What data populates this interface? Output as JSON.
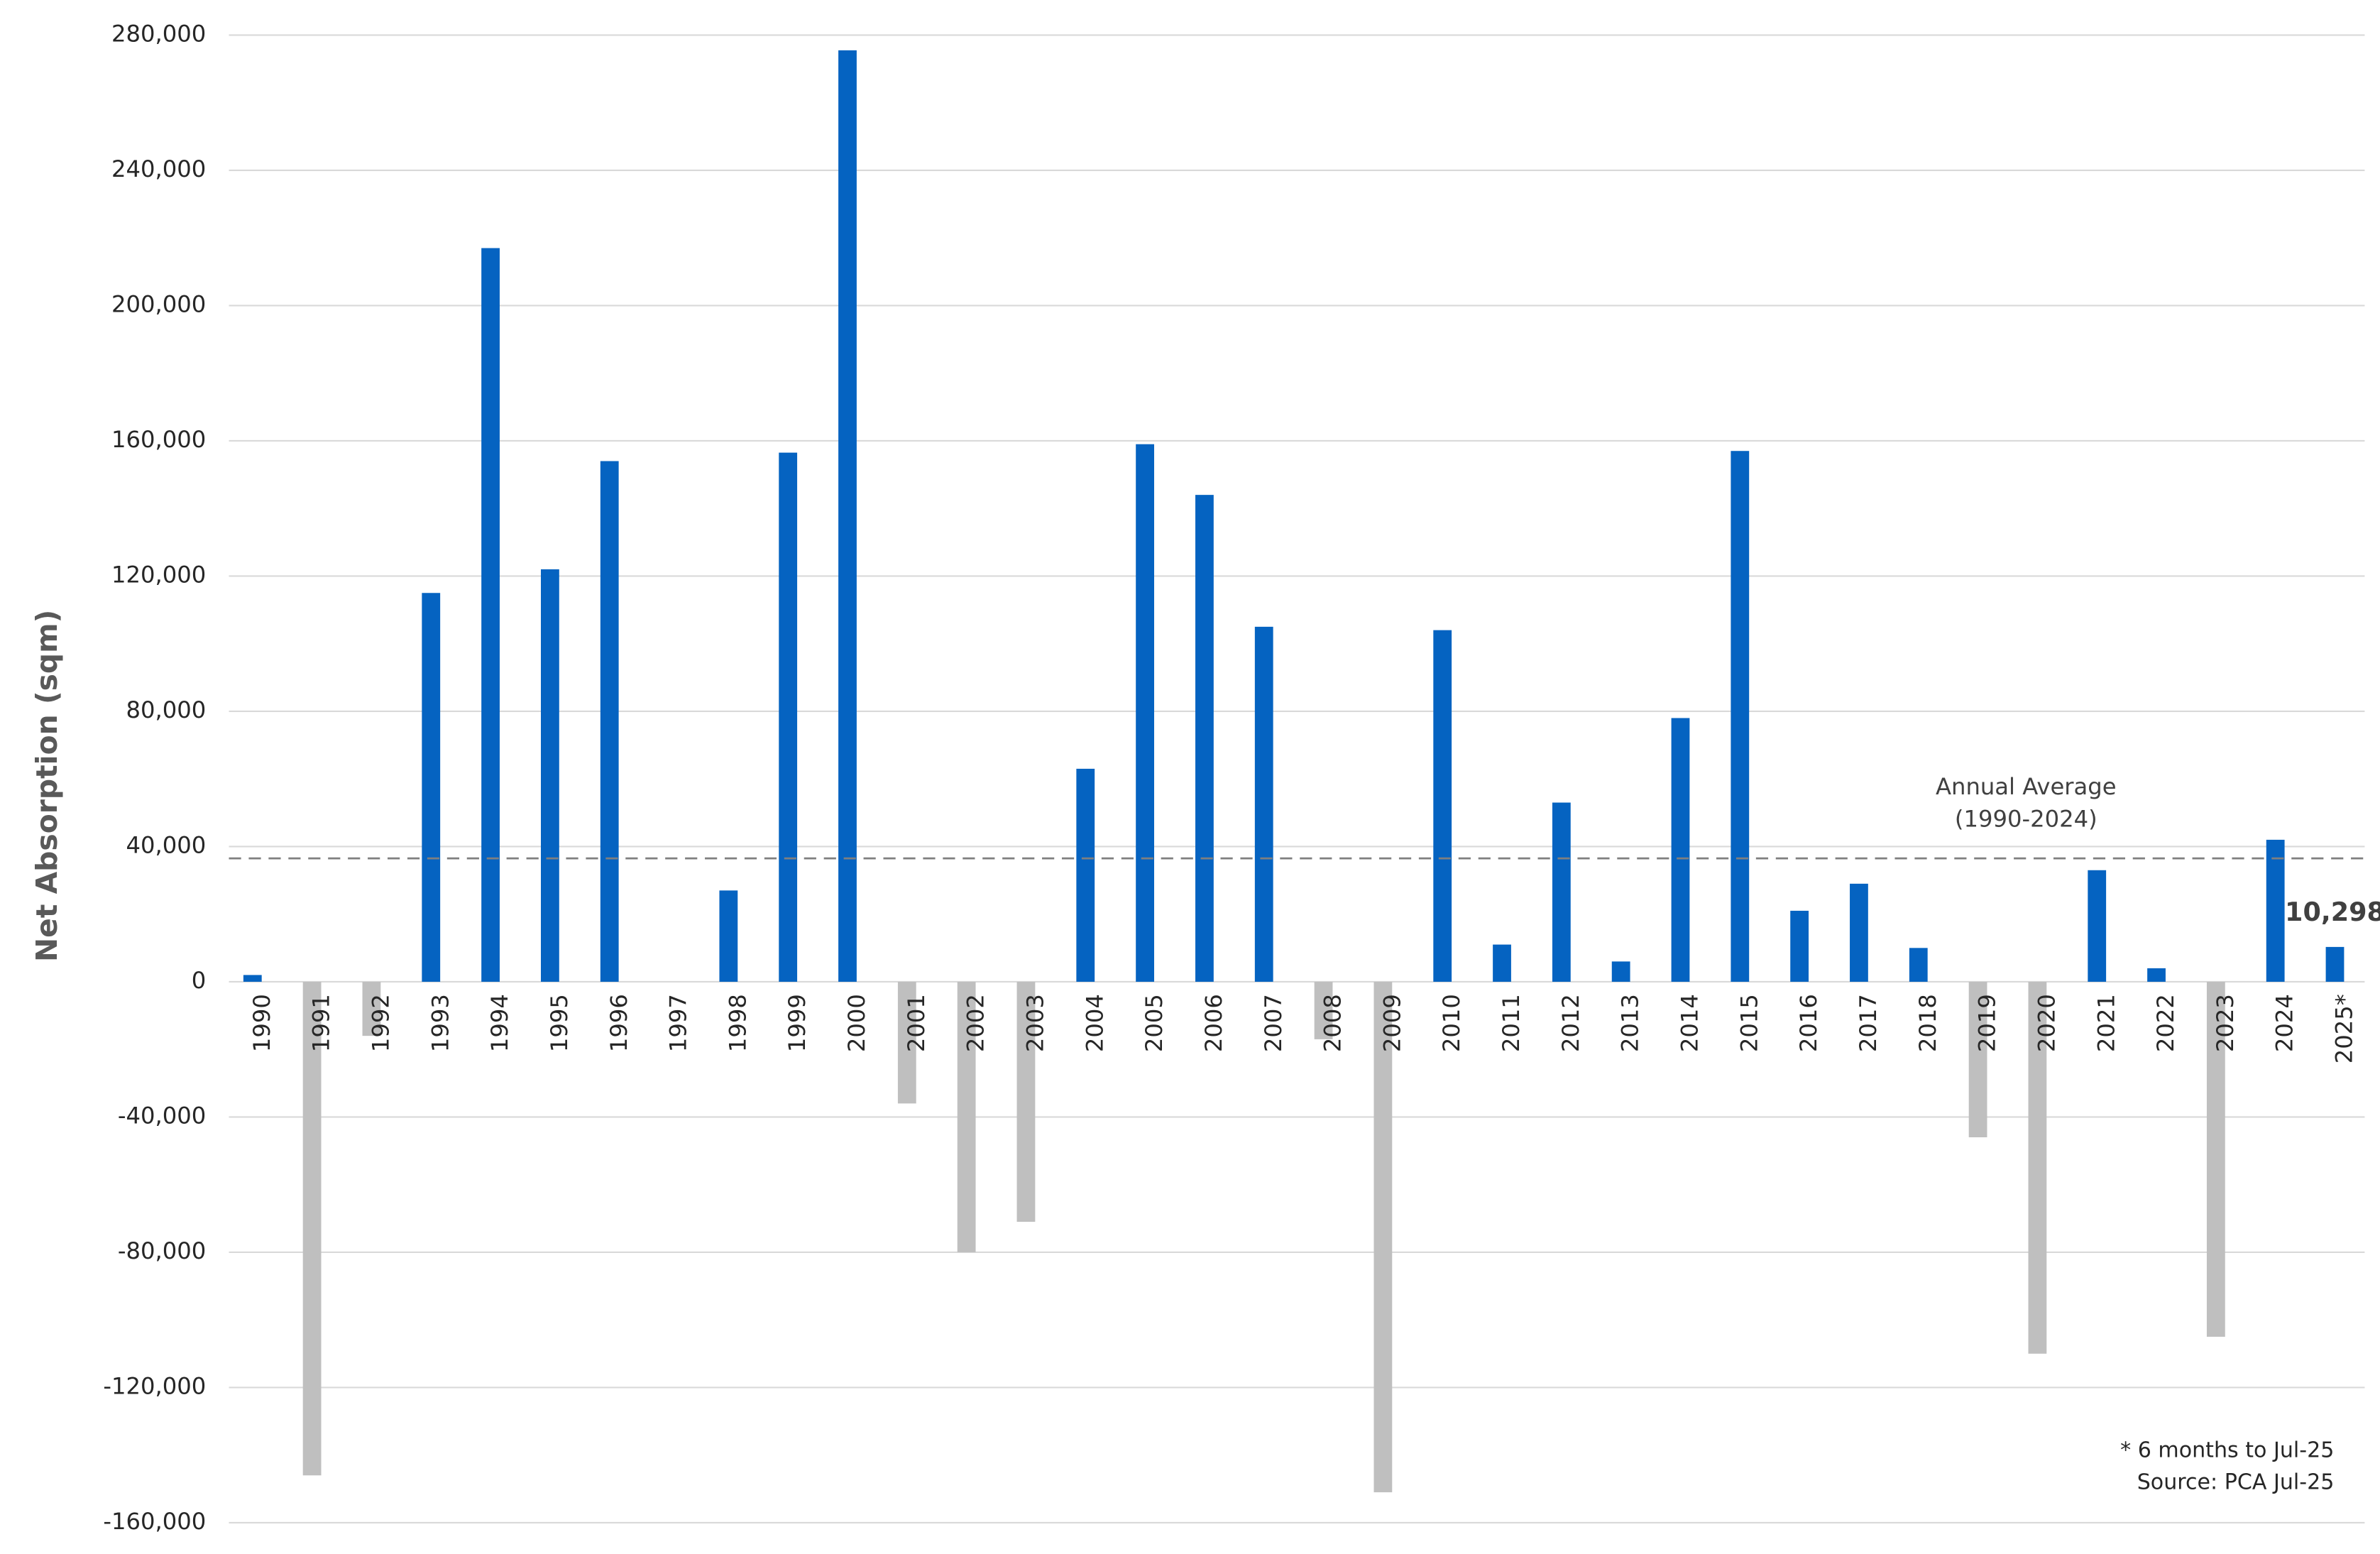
{
  "chart_data": {
    "type": "bar",
    "y_label": "Net Absorption (sqm)",
    "categories": [
      "1990",
      "1991",
      "1992",
      "1993",
      "1994",
      "1995",
      "1996",
      "1997",
      "1998",
      "1999",
      "2000",
      "2001",
      "2002",
      "2003",
      "2004",
      "2005",
      "2006",
      "2007",
      "2008",
      "2009",
      "2010",
      "2011",
      "2012",
      "2013",
      "2014",
      "2015",
      "2016",
      "2017",
      "2018",
      "2019",
      "2020",
      "2021",
      "2022",
      "2023",
      "2024",
      "2025*"
    ],
    "values": [
      2000,
      -146000,
      -16000,
      115000,
      217000,
      122000,
      154000,
      0,
      27000,
      156500,
      275500,
      -36000,
      -80000,
      -71000,
      63000,
      159000,
      144000,
      105000,
      -17000,
      -151000,
      104000,
      11000,
      53000,
      6000,
      78000,
      157000,
      21000,
      29000,
      10000,
      -46000,
      -110000,
      33000,
      4000,
      -105000,
      42000,
      10298
    ],
    "value_labels": [
      null,
      null,
      null,
      null,
      null,
      null,
      null,
      null,
      null,
      null,
      null,
      null,
      null,
      null,
      null,
      null,
      null,
      null,
      null,
      null,
      null,
      null,
      null,
      null,
      null,
      null,
      null,
      null,
      null,
      null,
      null,
      null,
      null,
      null,
      null,
      "10,298"
    ],
    "positive_color": "#0563c1",
    "negative_color": "#bfbfbf",
    "ylim": [
      -160000,
      280000
    ],
    "yticks": [
      {
        "value": -160000,
        "label": "-160,000"
      },
      {
        "value": -120000,
        "label": "-120,000"
      },
      {
        "value": -80000,
        "label": "-80,000"
      },
      {
        "value": -40000,
        "label": "-40,000"
      },
      0,
      {
        "value": 40000,
        "label": "40,000"
      },
      {
        "value": 80000,
        "label": "80,000"
      },
      {
        "value": 120000,
        "label": "120,000"
      },
      {
        "value": 160000,
        "label": "160,000"
      },
      {
        "value": 200000,
        "label": "200,000"
      },
      {
        "value": 240000,
        "label": "240,000"
      },
      {
        "value": 280000,
        "label": "280,000"
      }
    ],
    "grid": true,
    "reference_line": {
      "value": 36500,
      "label": [
        "Annual Average",
        "(1990-2024)"
      ]
    },
    "notes": [
      "* 6 months to Jul-25",
      "Source: PCA Jul-25"
    ]
  }
}
